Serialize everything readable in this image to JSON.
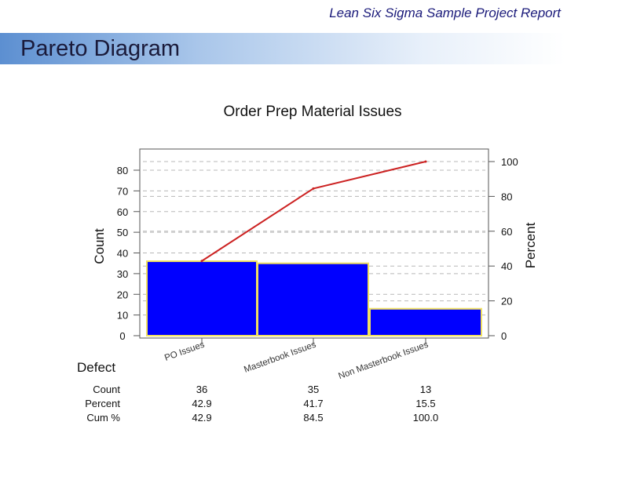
{
  "header": {
    "report_title": "Lean Six Sigma Sample Project Report",
    "slide_title": "Pareto Diagram"
  },
  "colors": {
    "bar_fill": "#0000ff",
    "bar_outline": "#f0e060",
    "cum_line": "#cc2222",
    "title_bar_start": "#5c8fd1",
    "report_title": "#1a1a7a"
  },
  "chart_data": {
    "type": "bar",
    "title": "Order Prep Material Issues",
    "ylabel": "Count",
    "ylabel_right": "Percent",
    "categories": [
      "PO Issues",
      "Masterbook Issues",
      "Non Masterbook Issues"
    ],
    "values": [
      36,
      35,
      13
    ],
    "cumulative_percent": [
      42.9,
      84.5,
      100.0
    ],
    "ylim": [
      0,
      84
    ],
    "ylim_right": [
      0,
      100
    ],
    "left_ticks": [
      0,
      10,
      20,
      30,
      40,
      50,
      60,
      70,
      80
    ],
    "right_ticks": [
      0,
      20,
      40,
      60,
      80,
      100
    ],
    "grid": true,
    "table": {
      "title": "Defect",
      "row_labels": [
        "Count",
        "Percent",
        "Cum %"
      ],
      "rows": [
        [
          "36",
          "35",
          "13"
        ],
        [
          "42.9",
          "41.7",
          "15.5"
        ],
        [
          "42.9",
          "84.5",
          "100.0"
        ]
      ]
    }
  }
}
